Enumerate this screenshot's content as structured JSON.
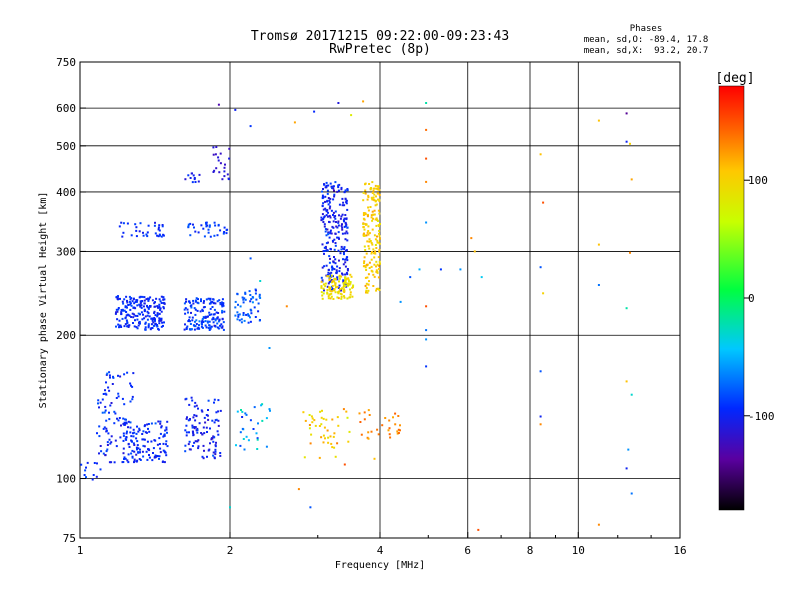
{
  "chart_data": {
    "type": "scatter",
    "title": "Tromsø 20171215 09:22:00-09:23:43",
    "subtitle": "RwPretec (8p)",
    "xlabel": "Frequency [MHz]",
    "ylabel": "Stationary phase Virtual Height [km]",
    "x_scale": "log",
    "y_scale": "log",
    "xlim": [
      1,
      16
    ],
    "ylim": [
      75,
      750
    ],
    "x_ticks": [
      1,
      2,
      4,
      6,
      8,
      10,
      16
    ],
    "y_ticks": [
      75,
      100,
      200,
      300,
      400,
      500,
      600,
      750
    ],
    "x_vgrid": [
      1,
      2,
      4,
      6,
      8,
      10
    ],
    "grid": true,
    "phases_legend": {
      "title": "Phases",
      "line_o": "mean, sd,O: -89.4, 17.8",
      "line_x": "mean, sd,X:  93.2, 20.7"
    },
    "colorbar": {
      "label": "[deg]",
      "ticks": [
        100,
        0,
        -100
      ],
      "range": [
        -180,
        180
      ],
      "colormap": "rainbow"
    },
    "clusters": [
      {
        "fmin": 1.18,
        "fmax": 1.48,
        "hmin": 205,
        "hmax": 242,
        "n": 220,
        "phase": -95,
        "spread": 10
      },
      {
        "fmin": 1.62,
        "fmax": 1.95,
        "hmin": 205,
        "hmax": 240,
        "n": 160,
        "phase": -90,
        "spread": 14
      },
      {
        "fmin": 2.05,
        "fmax": 2.3,
        "hmin": 212,
        "hmax": 250,
        "n": 55,
        "phase": -80,
        "spread": 14
      },
      {
        "fmin": 1.2,
        "fmax": 1.48,
        "hmin": 322,
        "hmax": 345,
        "n": 35,
        "phase": -95,
        "spread": 10
      },
      {
        "fmin": 1.62,
        "fmax": 1.98,
        "hmin": 322,
        "hmax": 345,
        "n": 35,
        "phase": -90,
        "spread": 10
      },
      {
        "fmin": 1.62,
        "fmax": 1.75,
        "hmin": 418,
        "hmax": 438,
        "n": 12,
        "phase": -105,
        "spread": 10
      },
      {
        "fmin": 1.85,
        "fmax": 2.0,
        "hmin": 420,
        "hmax": 500,
        "n": 22,
        "phase": -115,
        "spread": 10
      },
      {
        "fmin": 3.05,
        "fmax": 3.45,
        "hmin": 248,
        "hmax": 420,
        "n": 260,
        "phase": -100,
        "spread": 14
      },
      {
        "fmin": 3.05,
        "fmax": 3.55,
        "hmin": 238,
        "hmax": 268,
        "n": 110,
        "phase": 95,
        "spread": 14
      },
      {
        "fmin": 3.7,
        "fmax": 4.0,
        "hmin": 245,
        "hmax": 420,
        "n": 180,
        "phase": 105,
        "spread": 16
      },
      {
        "fmin": 1.08,
        "fmax": 1.28,
        "hmin": 108,
        "hmax": 168,
        "n": 90,
        "phase": -95,
        "spread": 14
      },
      {
        "fmin": 1.22,
        "fmax": 1.5,
        "hmin": 108,
        "hmax": 132,
        "n": 140,
        "phase": -95,
        "spread": 12
      },
      {
        "fmin": 1.62,
        "fmax": 1.92,
        "hmin": 110,
        "hmax": 148,
        "n": 110,
        "phase": -100,
        "spread": 14
      },
      {
        "fmin": 2.05,
        "fmax": 2.45,
        "hmin": 115,
        "hmax": 145,
        "n": 30,
        "phase": -60,
        "spread": 40
      },
      {
        "fmin": 2.8,
        "fmax": 3.5,
        "hmin": 110,
        "hmax": 140,
        "n": 45,
        "phase": 100,
        "spread": 25
      },
      {
        "fmin": 3.6,
        "fmax": 4.4,
        "hmin": 120,
        "hmax": 140,
        "n": 30,
        "phase": 130,
        "spread": 15
      },
      {
        "fmin": 1.0,
        "fmax": 1.1,
        "hmin": 99,
        "hmax": 108,
        "n": 12,
        "phase": -95,
        "spread": 10
      }
    ],
    "points": [
      {
        "f": 1.9,
        "h": 610,
        "phase": -130
      },
      {
        "f": 2.05,
        "h": 595,
        "phase": -100
      },
      {
        "f": 2.95,
        "h": 590,
        "phase": -95
      },
      {
        "f": 3.3,
        "h": 615,
        "phase": -110
      },
      {
        "f": 3.5,
        "h": 580,
        "phase": 80
      },
      {
        "f": 2.2,
        "h": 550,
        "phase": -90
      },
      {
        "f": 2.7,
        "h": 560,
        "phase": 120
      },
      {
        "f": 3.7,
        "h": 620,
        "phase": 120
      },
      {
        "f": 4.95,
        "h": 615,
        "phase": -20
      },
      {
        "f": 4.95,
        "h": 540,
        "phase": 140
      },
      {
        "f": 4.95,
        "h": 470,
        "phase": 150
      },
      {
        "f": 4.95,
        "h": 420,
        "phase": 130
      },
      {
        "f": 4.95,
        "h": 345,
        "phase": -60
      },
      {
        "f": 4.95,
        "h": 230,
        "phase": 150
      },
      {
        "f": 4.95,
        "h": 205,
        "phase": -70
      },
      {
        "f": 4.95,
        "h": 196,
        "phase": -60
      },
      {
        "f": 4.95,
        "h": 172,
        "phase": -90
      },
      {
        "f": 4.6,
        "h": 265,
        "phase": -80
      },
      {
        "f": 4.8,
        "h": 275,
        "phase": -50
      },
      {
        "f": 4.4,
        "h": 235,
        "phase": -60
      },
      {
        "f": 5.3,
        "h": 275,
        "phase": -90
      },
      {
        "f": 6.1,
        "h": 320,
        "phase": 130
      },
      {
        "f": 6.2,
        "h": 300,
        "phase": 110
      },
      {
        "f": 5.8,
        "h": 275,
        "phase": -60
      },
      {
        "f": 6.4,
        "h": 265,
        "phase": -40
      },
      {
        "f": 6.3,
        "h": 78,
        "phase": 150
      },
      {
        "f": 8.4,
        "h": 480,
        "phase": 110
      },
      {
        "f": 8.5,
        "h": 380,
        "phase": 150
      },
      {
        "f": 8.4,
        "h": 278,
        "phase": -80
      },
      {
        "f": 8.5,
        "h": 245,
        "phase": 100
      },
      {
        "f": 8.4,
        "h": 168,
        "phase": -80
      },
      {
        "f": 8.4,
        "h": 135,
        "phase": -100
      },
      {
        "f": 8.4,
        "h": 130,
        "phase": 130
      },
      {
        "f": 11.0,
        "h": 565,
        "phase": 110
      },
      {
        "f": 11.0,
        "h": 310,
        "phase": 110
      },
      {
        "f": 11.0,
        "h": 255,
        "phase": -70
      },
      {
        "f": 11.0,
        "h": 80,
        "phase": 130
      },
      {
        "f": 12.5,
        "h": 585,
        "phase": -140
      },
      {
        "f": 12.5,
        "h": 510,
        "phase": -100
      },
      {
        "f": 12.7,
        "h": 505,
        "phase": 100
      },
      {
        "f": 12.8,
        "h": 425,
        "phase": 120
      },
      {
        "f": 12.7,
        "h": 298,
        "phase": 130
      },
      {
        "f": 12.5,
        "h": 228,
        "phase": -20
      },
      {
        "f": 12.5,
        "h": 160,
        "phase": 110
      },
      {
        "f": 12.8,
        "h": 150,
        "phase": -30
      },
      {
        "f": 12.6,
        "h": 115,
        "phase": -60
      },
      {
        "f": 12.5,
        "h": 105,
        "phase": -100
      },
      {
        "f": 12.8,
        "h": 93,
        "phase": -70
      },
      {
        "f": 2.0,
        "h": 87,
        "phase": -30
      },
      {
        "f": 2.75,
        "h": 95,
        "phase": 130
      },
      {
        "f": 2.9,
        "h": 87,
        "phase": -80
      },
      {
        "f": 3.4,
        "h": 107,
        "phase": 150
      },
      {
        "f": 2.4,
        "h": 188,
        "phase": -60
      },
      {
        "f": 2.6,
        "h": 230,
        "phase": 130
      },
      {
        "f": 2.3,
        "h": 260,
        "phase": -30
      },
      {
        "f": 2.2,
        "h": 290,
        "phase": -80
      },
      {
        "f": 3.9,
        "h": 110,
        "phase": 110
      }
    ]
  }
}
